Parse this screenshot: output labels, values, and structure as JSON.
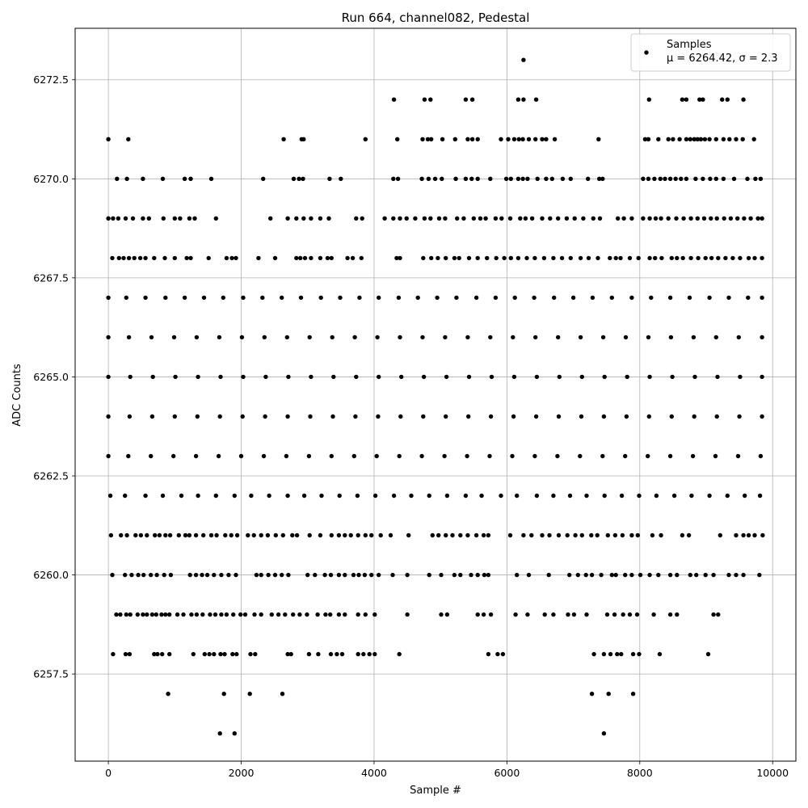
{
  "chart_data": {
    "type": "scatter",
    "title": "Run 664, channel082, Pedestal",
    "xlabel": "Sample #",
    "ylabel": "ADC Counts",
    "xlim": [
      -500,
      10350
    ],
    "ylim": [
      6255.3,
      6273.8
    ],
    "xticks": [
      0,
      2000,
      4000,
      6000,
      8000,
      10000
    ],
    "xtick_labels": [
      "0",
      "2000",
      "4000",
      "6000",
      "8000",
      "10000"
    ],
    "yticks": [
      6257.5,
      6260.0,
      6262.5,
      6265.0,
      6267.5,
      6270.0,
      6272.5
    ],
    "ytick_labels": [
      "6257.5",
      "6260.0",
      "6262.5",
      "6265.0",
      "6267.5",
      "6270.0",
      "6272.5"
    ],
    "grid": true,
    "legend_position": "top-right",
    "series": [
      {
        "name": "Samples",
        "color": "#000000",
        "marker": "circle",
        "levels": [
          {
            "y": 6256,
            "x": [
              1680,
              1900,
              7460
            ]
          },
          {
            "y": 6257,
            "x": [
              900,
              1740,
              2130,
              2620,
              7280,
              7530,
              7900
            ]
          },
          {
            "y": 6258,
            "x": [
              70,
              260,
              320,
              690,
              740,
              810,
              920,
              1280,
              1450,
              1520,
              1590,
              1690,
              1750,
              1870,
              1930,
              2140,
              2210,
              2700,
              2750,
              3020,
              3160,
              3350,
              3440,
              3520,
              3760,
              3840,
              3930,
              4010,
              4380,
              5720,
              5860,
              5940,
              7310,
              7460,
              7560,
              7660,
              7720,
              7900,
              7990,
              8300,
              9030
            ]
          },
          {
            "y": 6259,
            "x": [
              120,
              180,
              270,
              330,
              440,
              520,
              580,
              660,
              720,
              800,
              860,
              920,
              1040,
              1130,
              1250,
              1330,
              1420,
              1530,
              1610,
              1700,
              1780,
              1880,
              1990,
              2060,
              2200,
              2300,
              2460,
              2560,
              2660,
              2780,
              2880,
              2990,
              3150,
              3270,
              3340,
              3470,
              3560,
              3760,
              3870,
              4010,
              4500,
              5010,
              5100,
              5560,
              5650,
              5760,
              6130,
              6310,
              6570,
              6700,
              6920,
              7010,
              7200,
              7510,
              7620,
              7750,
              7850,
              7960,
              8210,
              8460,
              8560,
              9110,
              9180
            ]
          },
          {
            "y": 6260,
            "x": [
              60,
              250,
              350,
              450,
              530,
              640,
              730,
              840,
              940,
              1230,
              1320,
              1410,
              1490,
              1590,
              1700,
              1810,
              1920,
              2230,
              2300,
              2410,
              2510,
              2610,
              2710,
              3000,
              3110,
              3260,
              3350,
              3470,
              3560,
              3690,
              3770,
              3860,
              3960,
              4070,
              4280,
              4500,
              4830,
              5010,
              5210,
              5300,
              5460,
              5560,
              5660,
              5720,
              6150,
              6330,
              6630,
              6940,
              7070,
              7190,
              7280,
              7420,
              7580,
              7640,
              7780,
              7880,
              8010,
              8150,
              8280,
              8460,
              8560,
              8760,
              8850,
              8990,
              9110,
              9340,
              9450,
              9560,
              9800
            ]
          },
          {
            "y": 6261,
            "x": [
              40,
              190,
              280,
              410,
              490,
              580,
              700,
              770,
              860,
              930,
              1060,
              1160,
              1220,
              1320,
              1430,
              1550,
              1630,
              1760,
              1850,
              1940,
              2100,
              2190,
              2300,
              2400,
              2520,
              2630,
              2770,
              2840,
              3030,
              3190,
              3360,
              3470,
              3560,
              3650,
              3760,
              3870,
              3960,
              4100,
              4250,
              4520,
              4880,
              4970,
              5080,
              5180,
              5300,
              5410,
              5540,
              5650,
              5720,
              6050,
              6250,
              6370,
              6530,
              6640,
              6780,
              6910,
              7030,
              7130,
              7270,
              7360,
              7520,
              7630,
              7740,
              7880,
              7970,
              8190,
              8320,
              8640,
              8740,
              9210,
              9450,
              9560,
              9640,
              9730,
              9850
            ]
          },
          {
            "y": 6262,
            "x": [
              30,
              250,
              560,
              820,
              1100,
              1350,
              1620,
              1900,
              2150,
              2420,
              2700,
              2950,
              3210,
              3480,
              3750,
              4020,
              4300,
              4560,
              4830,
              5100,
              5380,
              5620,
              5910,
              6150,
              6450,
              6700,
              6950,
              7200,
              7470,
              7730,
              7990,
              8250,
              8520,
              8780,
              9050,
              9320,
              9580,
              9810
            ]
          },
          {
            "y": 6263,
            "x": [
              0,
              300,
              640,
              980,
              1320,
              1660,
              2000,
              2340,
              2680,
              3020,
              3360,
              3700,
              4040,
              4380,
              4720,
              5060,
              5400,
              5740,
              6080,
              6420,
              6760,
              7100,
              7440,
              7780,
              8120,
              8460,
              8800,
              9140,
              9480,
              9820
            ]
          },
          {
            "y": 6264,
            "x": [
              0,
              320,
              660,
              1000,
              1340,
              1680,
              2020,
              2360,
              2700,
              3040,
              3380,
              3720,
              4060,
              4400,
              4740,
              5080,
              5420,
              5760,
              6100,
              6440,
              6780,
              7120,
              7460,
              7800,
              8140,
              8480,
              8820,
              9160,
              9500,
              9840
            ]
          },
          {
            "y": 6265,
            "x": [
              0,
              330,
              670,
              1010,
              1350,
              1690,
              2030,
              2370,
              2710,
              3050,
              3390,
              3730,
              4070,
              4410,
              4750,
              5090,
              5430,
              5770,
              6110,
              6450,
              6790,
              7130,
              7470,
              7810,
              8150,
              8490,
              8830,
              9170,
              9510,
              9840
            ]
          },
          {
            "y": 6266,
            "x": [
              0,
              310,
              650,
              990,
              1330,
              1670,
              2010,
              2350,
              2690,
              3030,
              3370,
              3710,
              4050,
              4390,
              4730,
              5070,
              5410,
              5750,
              6090,
              6430,
              6770,
              7110,
              7450,
              7790,
              8130,
              8470,
              8810,
              9150,
              9490,
              9840
            ]
          },
          {
            "y": 6267,
            "x": [
              0,
              270,
              560,
              860,
              1150,
              1440,
              1730,
              2030,
              2320,
              2610,
              2900,
              3200,
              3490,
              3780,
              4070,
              4370,
              4660,
              4950,
              5240,
              5540,
              5830,
              6120,
              6410,
              6710,
              7000,
              7290,
              7580,
              7880,
              8170,
              8460,
              8750,
              9050,
              9340,
              9630,
              9840
            ]
          },
          {
            "y": 6268,
            "x": [
              60,
              160,
              230,
              310,
              390,
              480,
              560,
              690,
              850,
              1000,
              1180,
              1240,
              1510,
              1780,
              1860,
              1920,
              2260,
              2510,
              2830,
              2890,
              2960,
              3050,
              3190,
              3300,
              3360,
              3600,
              3680,
              3810,
              4340,
              4390,
              4740,
              4860,
              4960,
              5080,
              5210,
              5280,
              5430,
              5560,
              5700,
              5840,
              5960,
              6060,
              6170,
              6300,
              6420,
              6560,
              6700,
              6830,
              6960,
              7110,
              7230,
              7370,
              7550,
              7640,
              7710,
              7850,
              7980,
              8150,
              8230,
              8330,
              8480,
              8560,
              8650,
              8770,
              8880,
              8990,
              9080,
              9180,
              9290,
              9400,
              9510,
              9640,
              9730,
              9840
            ]
          },
          {
            "y": 6269,
            "x": [
              0,
              70,
              150,
              260,
              370,
              520,
              610,
              830,
              1000,
              1080,
              1220,
              1300,
              1620,
              2440,
              2700,
              2830,
              2940,
              3050,
              3190,
              3320,
              3730,
              3820,
              4160,
              4290,
              4390,
              4490,
              4620,
              4760,
              4850,
              4980,
              5070,
              5250,
              5350,
              5500,
              5600,
              5680,
              5830,
              5920,
              6050,
              6200,
              6280,
              6380,
              6530,
              6650,
              6770,
              6900,
              7020,
              7150,
              7300,
              7400,
              7670,
              7760,
              7880,
              8050,
              8150,
              8240,
              8320,
              8430,
              8550,
              8660,
              8770,
              8870,
              8970,
              9070,
              9160,
              9270,
              9370,
              9470,
              9570,
              9670,
              9780,
              9840
            ]
          },
          {
            "y": 6270,
            "x": [
              130,
              280,
              520,
              820,
              1150,
              1240,
              1550,
              2330,
              2790,
              2870,
              2930,
              3330,
              3500,
              4290,
              4360,
              4720,
              4820,
              4920,
              5020,
              5230,
              5380,
              5470,
              5560,
              5750,
              5990,
              6060,
              6170,
              6240,
              6310,
              6460,
              6590,
              6680,
              6840,
              6960,
              7220,
              7390,
              7440,
              8050,
              8130,
              8220,
              8310,
              8380,
              8460,
              8540,
              8620,
              8700,
              8840,
              8950,
              9060,
              9150,
              9260,
              9420,
              9620,
              9740,
              9820
            ]
          },
          {
            "y": 6271,
            "x": [
              0,
              300,
              2640,
              2910,
              2940,
              3870,
              4350,
              4730,
              4810,
              4860,
              5030,
              5220,
              5410,
              5480,
              5560,
              5910,
              6020,
              6110,
              6180,
              6240,
              6330,
              6430,
              6530,
              6590,
              6720,
              7380,
              8080,
              8130,
              8280,
              8430,
              8500,
              8600,
              8700,
              8760,
              8820,
              8870,
              8920,
              8980,
              9050,
              9150,
              9260,
              9350,
              9450,
              9550,
              9720
            ]
          },
          {
            "y": 6272,
            "x": [
              4300,
              4760,
              4850,
              5380,
              5480,
              6170,
              6250,
              6440,
              8140,
              8640,
              8700,
              8900,
              8950,
              9240,
              9320,
              9560
            ]
          },
          {
            "y": 6273,
            "x": [
              6250
            ]
          }
        ]
      }
    ],
    "legend": {
      "label": "Samples",
      "stats": "μ = 6264.42, σ = 2.3"
    }
  }
}
